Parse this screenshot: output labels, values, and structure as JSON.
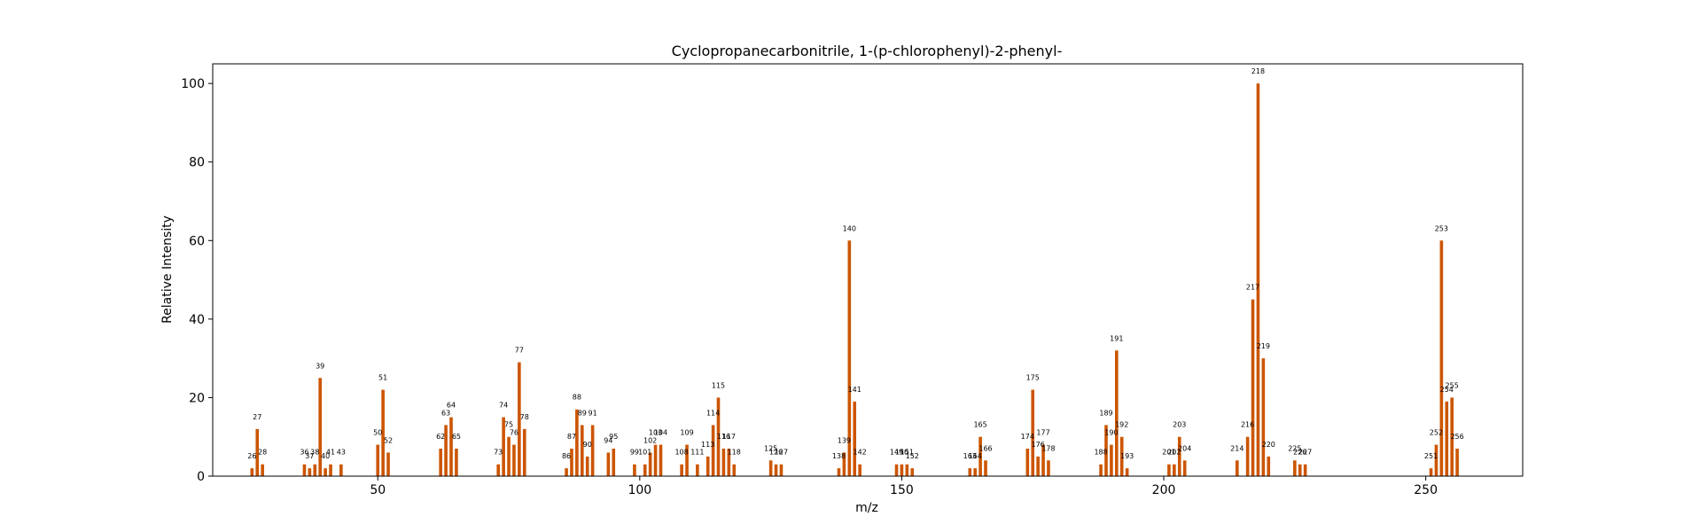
{
  "chart_data": {
    "type": "bar",
    "title": "Cyclopropanecarbonitrile, 1-(p-chlorophenyl)-2-phenyl-",
    "xlabel": "m/z",
    "ylabel": "Relative Intensity",
    "xlim": [
      18.5,
      268.5
    ],
    "ylim": [
      0,
      105
    ],
    "xticks": [
      50,
      100,
      150,
      200,
      250
    ],
    "yticks": [
      0,
      20,
      40,
      60,
      80,
      100
    ],
    "grid": false,
    "bar_color": "#cc5500",
    "peaks": [
      {
        "mz": 26,
        "intensity": 2
      },
      {
        "mz": 27,
        "intensity": 12
      },
      {
        "mz": 28,
        "intensity": 3
      },
      {
        "mz": 36,
        "intensity": 3
      },
      {
        "mz": 37,
        "intensity": 2
      },
      {
        "mz": 38,
        "intensity": 3
      },
      {
        "mz": 39,
        "intensity": 25
      },
      {
        "mz": 40,
        "intensity": 2
      },
      {
        "mz": 41,
        "intensity": 3
      },
      {
        "mz": 43,
        "intensity": 3
      },
      {
        "mz": 50,
        "intensity": 8
      },
      {
        "mz": 51,
        "intensity": 22
      },
      {
        "mz": 52,
        "intensity": 6
      },
      {
        "mz": 62,
        "intensity": 7
      },
      {
        "mz": 63,
        "intensity": 13
      },
      {
        "mz": 64,
        "intensity": 15
      },
      {
        "mz": 65,
        "intensity": 7
      },
      {
        "mz": 73,
        "intensity": 3
      },
      {
        "mz": 74,
        "intensity": 15
      },
      {
        "mz": 75,
        "intensity": 10
      },
      {
        "mz": 76,
        "intensity": 8
      },
      {
        "mz": 77,
        "intensity": 29
      },
      {
        "mz": 78,
        "intensity": 12
      },
      {
        "mz": 86,
        "intensity": 2
      },
      {
        "mz": 87,
        "intensity": 7
      },
      {
        "mz": 88,
        "intensity": 17
      },
      {
        "mz": 89,
        "intensity": 13
      },
      {
        "mz": 90,
        "intensity": 5
      },
      {
        "mz": 91,
        "intensity": 13
      },
      {
        "mz": 94,
        "intensity": 6
      },
      {
        "mz": 95,
        "intensity": 7
      },
      {
        "mz": 99,
        "intensity": 3
      },
      {
        "mz": 101,
        "intensity": 3
      },
      {
        "mz": 102,
        "intensity": 6
      },
      {
        "mz": 103,
        "intensity": 8
      },
      {
        "mz": 104,
        "intensity": 8
      },
      {
        "mz": 108,
        "intensity": 3
      },
      {
        "mz": 109,
        "intensity": 8
      },
      {
        "mz": 111,
        "intensity": 3
      },
      {
        "mz": 113,
        "intensity": 5
      },
      {
        "mz": 114,
        "intensity": 13
      },
      {
        "mz": 115,
        "intensity": 20
      },
      {
        "mz": 116,
        "intensity": 7
      },
      {
        "mz": 117,
        "intensity": 7
      },
      {
        "mz": 118,
        "intensity": 3
      },
      {
        "mz": 125,
        "intensity": 4
      },
      {
        "mz": 126,
        "intensity": 3
      },
      {
        "mz": 127,
        "intensity": 3
      },
      {
        "mz": 138,
        "intensity": 2
      },
      {
        "mz": 139,
        "intensity": 6
      },
      {
        "mz": 140,
        "intensity": 60
      },
      {
        "mz": 141,
        "intensity": 19
      },
      {
        "mz": 142,
        "intensity": 3
      },
      {
        "mz": 149,
        "intensity": 3
      },
      {
        "mz": 150,
        "intensity": 3
      },
      {
        "mz": 151,
        "intensity": 3
      },
      {
        "mz": 152,
        "intensity": 2
      },
      {
        "mz": 163,
        "intensity": 2
      },
      {
        "mz": 164,
        "intensity": 2
      },
      {
        "mz": 165,
        "intensity": 10
      },
      {
        "mz": 166,
        "intensity": 4
      },
      {
        "mz": 174,
        "intensity": 7
      },
      {
        "mz": 175,
        "intensity": 22
      },
      {
        "mz": 176,
        "intensity": 5
      },
      {
        "mz": 177,
        "intensity": 8
      },
      {
        "mz": 178,
        "intensity": 4
      },
      {
        "mz": 188,
        "intensity": 3
      },
      {
        "mz": 189,
        "intensity": 13
      },
      {
        "mz": 190,
        "intensity": 8
      },
      {
        "mz": 191,
        "intensity": 32
      },
      {
        "mz": 192,
        "intensity": 10
      },
      {
        "mz": 193,
        "intensity": 2
      },
      {
        "mz": 201,
        "intensity": 3
      },
      {
        "mz": 202,
        "intensity": 3
      },
      {
        "mz": 203,
        "intensity": 10
      },
      {
        "mz": 204,
        "intensity": 4
      },
      {
        "mz": 214,
        "intensity": 4
      },
      {
        "mz": 216,
        "intensity": 10
      },
      {
        "mz": 217,
        "intensity": 45
      },
      {
        "mz": 218,
        "intensity": 100
      },
      {
        "mz": 219,
        "intensity": 30
      },
      {
        "mz": 220,
        "intensity": 5
      },
      {
        "mz": 225,
        "intensity": 4
      },
      {
        "mz": 226,
        "intensity": 3
      },
      {
        "mz": 227,
        "intensity": 3
      },
      {
        "mz": 251,
        "intensity": 2
      },
      {
        "mz": 252,
        "intensity": 8
      },
      {
        "mz": 253,
        "intensity": 60
      },
      {
        "mz": 254,
        "intensity": 19
      },
      {
        "mz": 255,
        "intensity": 20
      },
      {
        "mz": 256,
        "intensity": 7
      }
    ]
  }
}
